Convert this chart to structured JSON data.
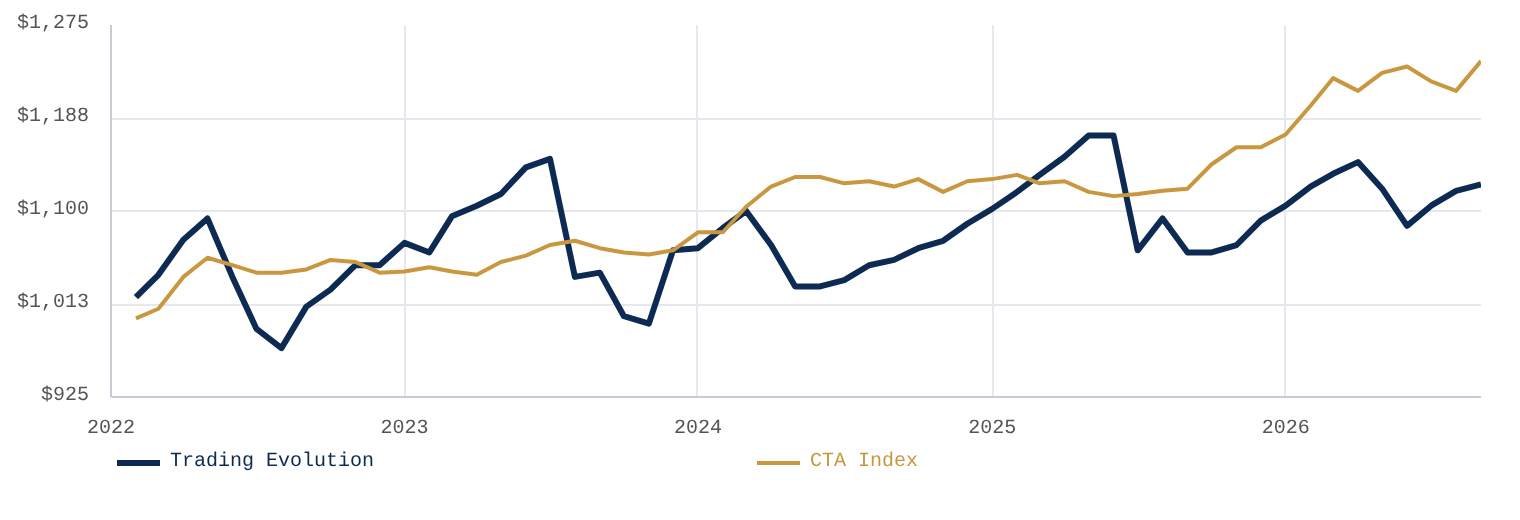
{
  "chart_data": {
    "type": "line",
    "x": [
      "2022-02",
      "2022-03",
      "2022-04",
      "2022-05",
      "2022-06",
      "2022-07",
      "2022-08",
      "2022-09",
      "2022-10",
      "2022-11",
      "2022-12",
      "2023-01",
      "2023-02",
      "2023-03",
      "2023-04",
      "2023-05",
      "2023-06",
      "2023-07",
      "2023-08",
      "2023-09",
      "2023-10",
      "2023-11",
      "2023-12",
      "2024-01",
      "2024-02",
      "2024-03",
      "2024-04",
      "2024-05",
      "2024-06",
      "2024-07",
      "2024-08",
      "2024-09",
      "2024-10",
      "2024-11",
      "2024-12",
      "2025-01",
      "2025-02",
      "2025-03",
      "2025-04",
      "2025-05",
      "2025-06",
      "2025-07",
      "2025-08",
      "2025-09",
      "2025-10",
      "2025-11",
      "2025-12",
      "2026-01",
      "2026-02",
      "2026-03",
      "2026-04",
      "2026-05",
      "2026-06",
      "2026-07",
      "2026-08",
      "2026-09"
    ],
    "series": [
      {
        "name": "Trading Evolution",
        "color": "#0d2b52",
        "values": [
          1019,
          1040,
          1073,
          1093,
          1038,
          989,
          971,
          1010,
          1026,
          1049,
          1049,
          1070,
          1061,
          1095,
          1105,
          1116,
          1141,
          1149,
          1038,
          1042,
          1001,
          994,
          1063,
          1065,
          1084,
          1100,
          1068,
          1029,
          1029,
          1035,
          1049,
          1054,
          1065,
          1072,
          1088,
          1102,
          1118,
          1134,
          1151,
          1171,
          1171,
          1063,
          1093,
          1061,
          1061,
          1068,
          1091,
          1105,
          1123,
          1135,
          1146,
          1121,
          1086,
          1105,
          1119,
          1125
        ]
      },
      {
        "name": "CTA Index",
        "color": "#c9973f",
        "values": [
          999,
          1008,
          1038,
          1056,
          1049,
          1042,
          1042,
          1045,
          1054,
          1052,
          1042,
          1043,
          1047,
          1043,
          1040,
          1052,
          1058,
          1068,
          1072,
          1065,
          1061,
          1059,
          1063,
          1080,
          1080,
          1104,
          1123,
          1132,
          1132,
          1126,
          1128,
          1123,
          1130,
          1118,
          1128,
          1130,
          1134,
          1126,
          1128,
          1118,
          1114,
          1116,
          1119,
          1121,
          1144,
          1160,
          1160,
          1172,
          1199,
          1225,
          1213,
          1230,
          1236,
          1222,
          1213,
          1241
        ]
      }
    ],
    "xlim": [
      "2022-01",
      "2026-09"
    ],
    "xticks": [
      "2022",
      "2023",
      "2024",
      "2025",
      "2026"
    ],
    "ylim": [
      925,
      1275
    ],
    "yticks": [
      {
        "value": 925,
        "label": "$925"
      },
      {
        "value": 1012.5,
        "label": "$1,013"
      },
      {
        "value": 1100,
        "label": "$1,100"
      },
      {
        "value": 1187.5,
        "label": "$1,188"
      },
      {
        "value": 1275,
        "label": "$1,275"
      }
    ],
    "grid": true,
    "legend": "bottom",
    "line_style": "solid",
    "marker": "none"
  }
}
